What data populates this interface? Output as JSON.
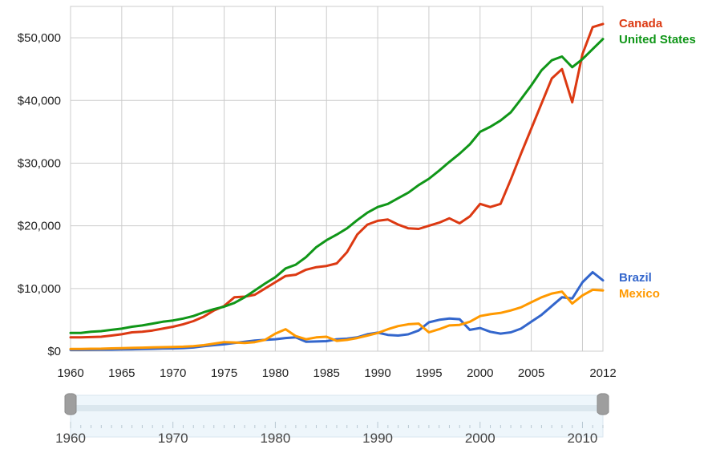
{
  "chart_data": {
    "type": "line",
    "x": [
      1960,
      1961,
      1962,
      1963,
      1964,
      1965,
      1966,
      1967,
      1968,
      1969,
      1970,
      1971,
      1972,
      1973,
      1974,
      1975,
      1976,
      1977,
      1978,
      1979,
      1980,
      1981,
      1982,
      1983,
      1984,
      1985,
      1986,
      1987,
      1988,
      1989,
      1990,
      1991,
      1992,
      1993,
      1994,
      1995,
      1996,
      1997,
      1998,
      1999,
      2000,
      2001,
      2002,
      2003,
      2004,
      2005,
      2006,
      2007,
      2008,
      2009,
      2010,
      2011,
      2012
    ],
    "series": [
      {
        "name": "Canada",
        "color": "#dc3912",
        "values": [
          2200,
          2200,
          2250,
          2300,
          2500,
          2700,
          3000,
          3100,
          3300,
          3600,
          3900,
          4300,
          4800,
          5500,
          6500,
          7200,
          8600,
          8700,
          9000,
          10000,
          11000,
          12000,
          12200,
          13000,
          13400,
          13600,
          14000,
          15800,
          18600,
          20200,
          20800,
          21000,
          20200,
          19600,
          19500,
          20000,
          20500,
          21200,
          20400,
          21500,
          23500,
          23000,
          23500,
          27400,
          31500,
          35500,
          39500,
          43500,
          45000,
          39700,
          47400,
          51700,
          52200
        ]
      },
      {
        "name": "United States",
        "color": "#109618",
        "values": [
          2900,
          2900,
          3100,
          3200,
          3400,
          3600,
          3900,
          4100,
          4400,
          4700,
          4900,
          5200,
          5600,
          6200,
          6700,
          7100,
          7700,
          8600,
          9700,
          10800,
          11800,
          13200,
          13800,
          15000,
          16600,
          17700,
          18600,
          19600,
          20900,
          22100,
          23000,
          23500,
          24400,
          25300,
          26500,
          27500,
          28800,
          30200,
          31500,
          33000,
          35000,
          35800,
          36800,
          38100,
          40200,
          42400,
          44800,
          46400,
          47000,
          45300,
          46600,
          48200,
          49800
        ]
      },
      {
        "name": "Brazil",
        "color": "#3366cc",
        "values": [
          200,
          210,
          220,
          240,
          260,
          280,
          310,
          350,
          390,
          430,
          450,
          500,
          590,
          790,
          960,
          1100,
          1300,
          1500,
          1700,
          1800,
          1900,
          2100,
          2200,
          1500,
          1550,
          1600,
          1900,
          2000,
          2200,
          2700,
          2950,
          2600,
          2500,
          2700,
          3300,
          4600,
          5000,
          5200,
          5100,
          3400,
          3700,
          3100,
          2800,
          3000,
          3600,
          4700,
          5800,
          7200,
          8600,
          8400,
          11000,
          12600,
          11300
        ]
      },
      {
        "name": "Mexico",
        "color": "#ff9900",
        "values": [
          340,
          360,
          380,
          400,
          450,
          480,
          520,
          560,
          600,
          640,
          680,
          720,
          800,
          960,
          1200,
          1450,
          1400,
          1300,
          1450,
          1800,
          2800,
          3500,
          2400,
          1900,
          2200,
          2300,
          1650,
          1800,
          2100,
          2500,
          2900,
          3500,
          4000,
          4300,
          4400,
          3000,
          3500,
          4100,
          4200,
          4700,
          5600,
          5900,
          6100,
          6500,
          7000,
          7800,
          8600,
          9200,
          9500,
          7600,
          8900,
          9800,
          9700
        ]
      }
    ],
    "ylim": [
      0,
      55000
    ],
    "yticks": [
      0,
      10000,
      20000,
      30000,
      40000,
      50000
    ],
    "ytick_labels": [
      "$0",
      "$10,000",
      "$20,000",
      "$30,000",
      "$40,000",
      "$50,000"
    ],
    "xlim": [
      1960,
      2012
    ],
    "xticks": [
      1960,
      1965,
      1970,
      1975,
      1980,
      1985,
      1990,
      1995,
      2000,
      2005,
      2012
    ],
    "xtick_labels": [
      "1960",
      "1965",
      "1970",
      "1975",
      "1980",
      "1985",
      "1990",
      "1995",
      "2000",
      "2005",
      "2012"
    ],
    "xgrid": [
      1960,
      1965,
      1970,
      1975,
      1980,
      1985,
      1990,
      1995,
      2000,
      2005,
      2010,
      2012
    ],
    "grid": true,
    "legend_placement": "right"
  },
  "legend": {
    "items": [
      {
        "label": "Canada",
        "color": "#dc3912",
        "series": 0
      },
      {
        "label": "United States",
        "color": "#109618",
        "series": 1
      },
      {
        "label": "Brazil",
        "color": "#3366cc",
        "series": 2
      },
      {
        "label": "Mexico",
        "color": "#ff9900",
        "series": 3
      }
    ]
  },
  "time_slider": {
    "range": [
      1960,
      2012
    ],
    "tick_labels": [
      "1960",
      "1970",
      "1980",
      "1990",
      "2000",
      "2010"
    ]
  }
}
